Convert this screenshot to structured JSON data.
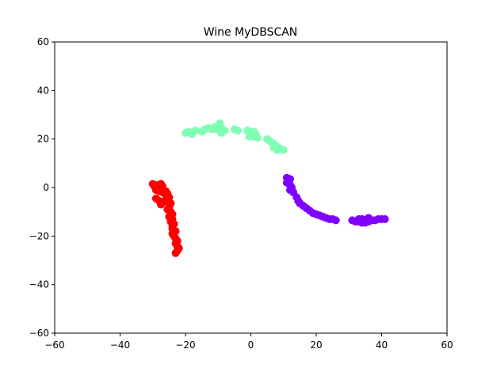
{
  "chart_data": {
    "type": "scatter",
    "title": "Wine MyDBSCAN",
    "xlabel": "",
    "ylabel": "",
    "xlim": [
      -60,
      60
    ],
    "ylim": [
      -60,
      60
    ],
    "xticks": [
      -60,
      -40,
      -20,
      0,
      20,
      40,
      60
    ],
    "yticks": [
      -60,
      -40,
      -20,
      0,
      20,
      40,
      60
    ],
    "xtick_labels": [
      "−60",
      "−40",
      "−20",
      "0",
      "20",
      "40",
      "60"
    ],
    "ytick_labels": [
      "−60",
      "−40",
      "−20",
      "0",
      "20",
      "40",
      "60"
    ],
    "grid": false,
    "legend": "none",
    "series": [
      {
        "color": "#ff0000",
        "points": [
          [
            -30,
            1.5
          ],
          [
            -29.5,
            0.5
          ],
          [
            -28.5,
            1
          ],
          [
            -27.5,
            1.5
          ],
          [
            -27,
            0.5
          ],
          [
            -29,
            -1
          ],
          [
            -28,
            -1.5
          ],
          [
            -27,
            -2
          ],
          [
            -26,
            -1.5
          ],
          [
            -25.5,
            -2.5
          ],
          [
            -26,
            -3
          ],
          [
            -25,
            -4
          ],
          [
            -26,
            -5
          ],
          [
            -25.5,
            -6
          ],
          [
            -24.5,
            -6.5
          ],
          [
            -25,
            -8
          ],
          [
            -25.5,
            -9
          ],
          [
            -24.5,
            -10
          ],
          [
            -24,
            -11
          ],
          [
            -25,
            -12
          ],
          [
            -24,
            -13
          ],
          [
            -24.5,
            -14
          ],
          [
            -23.5,
            -15
          ],
          [
            -24,
            -16
          ],
          [
            -24,
            -17
          ],
          [
            -23,
            -18
          ],
          [
            -24,
            -19
          ],
          [
            -23.5,
            -20
          ],
          [
            -23,
            -21
          ],
          [
            -22.5,
            -22
          ],
          [
            -23,
            -23
          ],
          [
            -22.5,
            -24
          ],
          [
            -22,
            -25
          ],
          [
            -22.5,
            -26
          ],
          [
            -23,
            -27
          ],
          [
            -29,
            -4.5
          ],
          [
            -28,
            -5.5
          ],
          [
            -27.5,
            -7
          ]
        ]
      },
      {
        "color": "#80ffb4",
        "points": [
          [
            -20,
            22.5
          ],
          [
            -19,
            23
          ],
          [
            -18,
            22
          ],
          [
            -17,
            23.5
          ],
          [
            -15,
            23
          ],
          [
            -14,
            24
          ],
          [
            -13,
            24.5
          ],
          [
            -12,
            24
          ],
          [
            -11,
            25
          ],
          [
            -10,
            25.5
          ],
          [
            -9,
            24.5
          ],
          [
            -9.5,
            26.5
          ],
          [
            -10.5,
            24
          ],
          [
            -9,
            22.5
          ],
          [
            -8,
            23.5
          ],
          [
            -5,
            24
          ],
          [
            -4,
            23.5
          ],
          [
            -1,
            23.5
          ],
          [
            0,
            22.5
          ],
          [
            0.5,
            21.5
          ],
          [
            -0.5,
            21
          ],
          [
            1,
            21
          ],
          [
            1.5,
            22
          ],
          [
            2,
            20.5
          ],
          [
            5,
            20
          ],
          [
            6,
            19
          ],
          [
            7,
            18
          ],
          [
            8,
            17
          ],
          [
            9,
            16
          ],
          [
            10,
            15.5
          ],
          [
            8,
            15.5
          ],
          [
            7,
            16.5
          ],
          [
            -0.5,
            23
          ],
          [
            1,
            23
          ]
        ]
      },
      {
        "color": "#8000ff",
        "points": [
          [
            11,
            4
          ],
          [
            12,
            3.5
          ],
          [
            11,
            2
          ],
          [
            12,
            1
          ],
          [
            12.5,
            0
          ],
          [
            12,
            -1
          ],
          [
            13,
            -2
          ],
          [
            14,
            -4
          ],
          [
            14.5,
            -5.5
          ],
          [
            15,
            -6.5
          ],
          [
            16,
            -7.5
          ],
          [
            17,
            -8.5
          ],
          [
            18,
            -9.5
          ],
          [
            19,
            -10.5
          ],
          [
            20,
            -11
          ],
          [
            21,
            -11.5
          ],
          [
            22,
            -12
          ],
          [
            23,
            -12.5
          ],
          [
            24,
            -13
          ],
          [
            25,
            -13
          ],
          [
            26,
            -13.5
          ],
          [
            31,
            -13.5
          ],
          [
            32,
            -14
          ],
          [
            33,
            -14
          ],
          [
            34,
            -14.5
          ],
          [
            35,
            -14.5
          ],
          [
            33,
            -13
          ],
          [
            34,
            -13
          ],
          [
            36,
            -14
          ],
          [
            37,
            -13.5
          ],
          [
            38,
            -13.5
          ],
          [
            39,
            -13
          ],
          [
            40,
            -13
          ],
          [
            41,
            -13
          ],
          [
            36,
            -12.5
          ]
        ]
      }
    ]
  }
}
